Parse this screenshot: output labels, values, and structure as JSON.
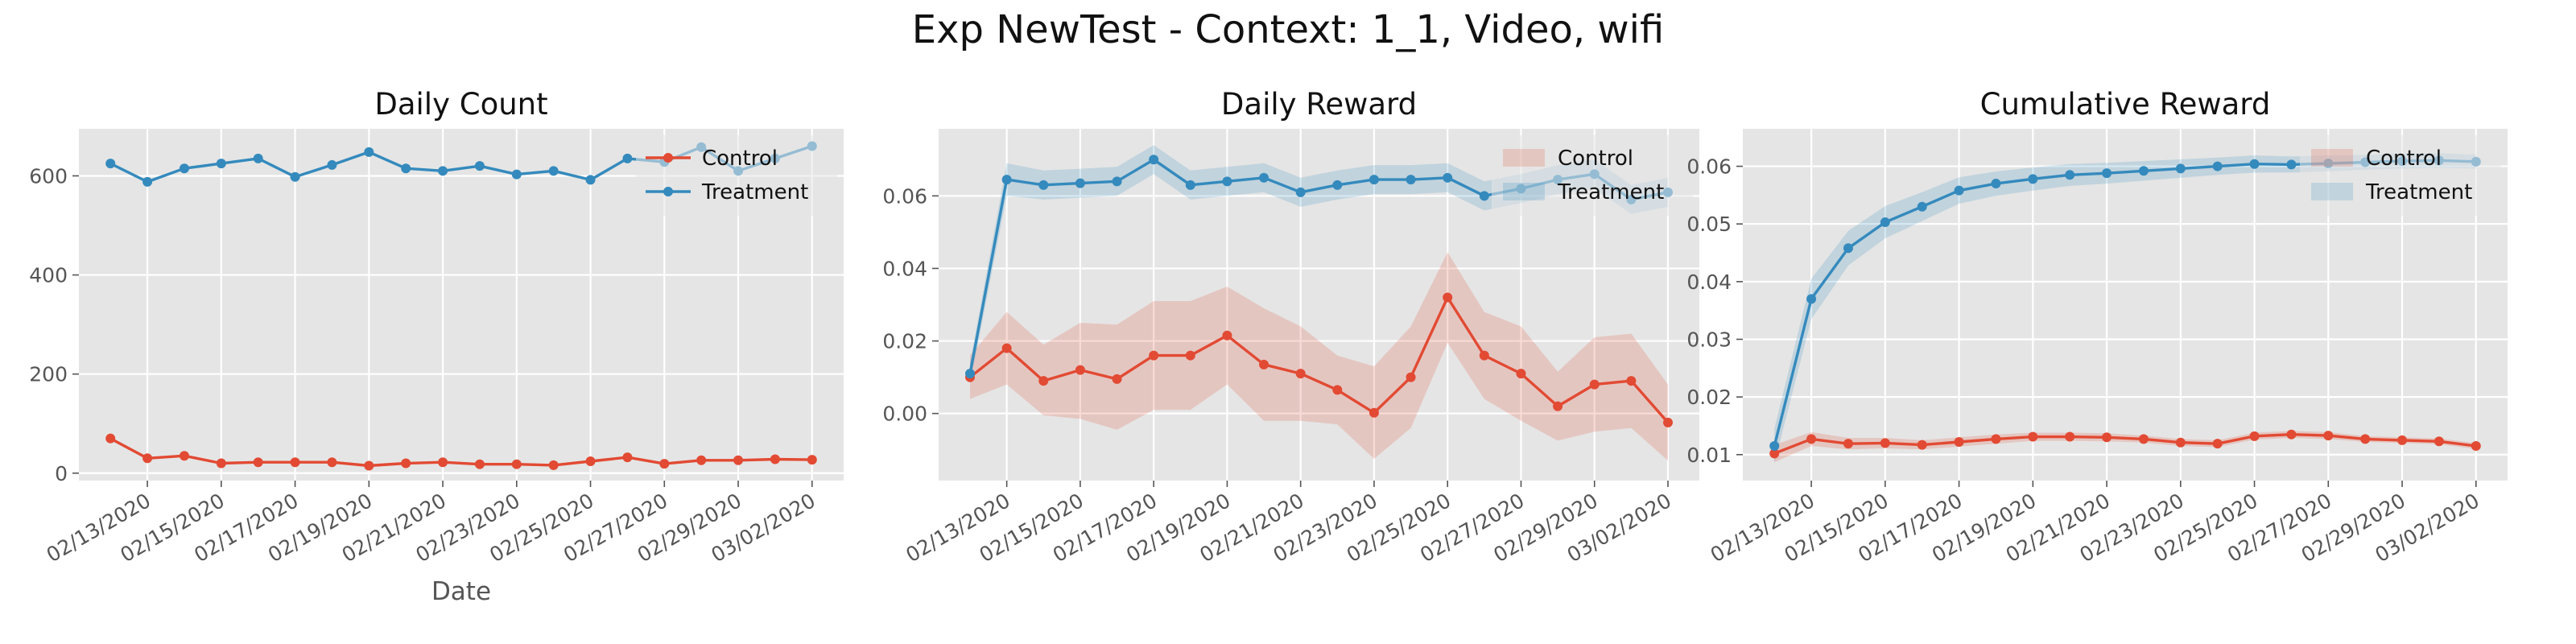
{
  "figure_title": "Exp NewTest - Context: 1_1, Video, wifi",
  "colors": {
    "control": "#e24a33",
    "treatment": "#348abd",
    "plot_background": "#e5e5e5",
    "grid": "#ffffff",
    "tick_text": "#555555"
  },
  "chart_data": [
    {
      "type": "line",
      "title": "Daily Count",
      "xlabel": "Date",
      "ylabel": "",
      "grid": true,
      "legend": {
        "placement": "top-right",
        "style": "line-marker",
        "entries": [
          "Control",
          "Treatment"
        ]
      },
      "x_range": [
        0,
        19
      ],
      "ylim": [
        -15,
        695
      ],
      "x_tick_labels": [
        {
          "x": 1,
          "label": "02/13/2020"
        },
        {
          "x": 3,
          "label": "02/15/2020"
        },
        {
          "x": 5,
          "label": "02/17/2020"
        },
        {
          "x": 7,
          "label": "02/19/2020"
        },
        {
          "x": 9,
          "label": "02/21/2020"
        },
        {
          "x": 11,
          "label": "02/23/2020"
        },
        {
          "x": 13,
          "label": "02/25/2020"
        },
        {
          "x": 15,
          "label": "02/27/2020"
        },
        {
          "x": 17,
          "label": "02/29/2020"
        },
        {
          "x": 19,
          "label": "03/02/2020"
        }
      ],
      "y_ticks": [
        0,
        200,
        400,
        600
      ],
      "y_tick_labels": [
        "0",
        "200",
        "400",
        "600"
      ],
      "series": [
        {
          "name": "Control",
          "x": [
            0,
            1,
            2,
            3,
            4,
            5,
            6,
            7,
            8,
            9,
            10,
            11,
            12,
            13,
            14,
            15,
            16,
            17,
            18,
            19
          ],
          "y": [
            70,
            30,
            35,
            20,
            22,
            22,
            22,
            15,
            20,
            22,
            18,
            18,
            16,
            24,
            32,
            19,
            26,
            26,
            28,
            27
          ]
        },
        {
          "name": "Treatment",
          "x": [
            0,
            1,
            2,
            3,
            4,
            5,
            6,
            7,
            8,
            9,
            10,
            11,
            12,
            13,
            14,
            15,
            16,
            17,
            18,
            19
          ],
          "y": [
            625,
            588,
            615,
            625,
            635,
            598,
            622,
            648,
            615,
            610,
            620,
            603,
            610,
            592,
            635,
            628,
            658,
            610,
            635,
            660
          ]
        }
      ]
    },
    {
      "type": "line",
      "title": "Daily Reward",
      "xlabel": "",
      "ylabel": "",
      "grid": true,
      "legend": {
        "placement": "top-right",
        "style": "patch",
        "entries": [
          "Control",
          "Treatment"
        ]
      },
      "x_range": [
        0,
        19
      ],
      "ylim": [
        -0.0185,
        0.0785
      ],
      "x_tick_labels": [
        {
          "x": 1,
          "label": "02/13/2020"
        },
        {
          "x": 3,
          "label": "02/15/2020"
        },
        {
          "x": 5,
          "label": "02/17/2020"
        },
        {
          "x": 7,
          "label": "02/19/2020"
        },
        {
          "x": 9,
          "label": "02/21/2020"
        },
        {
          "x": 11,
          "label": "02/23/2020"
        },
        {
          "x": 13,
          "label": "02/25/2020"
        },
        {
          "x": 15,
          "label": "02/27/2020"
        },
        {
          "x": 17,
          "label": "02/29/2020"
        },
        {
          "x": 19,
          "label": "03/02/2020"
        }
      ],
      "y_ticks": [
        0,
        0.02,
        0.04,
        0.06
      ],
      "y_tick_labels": [
        "0.00",
        "0.02",
        "0.04",
        "0.06"
      ],
      "series": [
        {
          "name": "Control",
          "x": [
            0,
            1,
            2,
            3,
            4,
            5,
            6,
            7,
            8,
            9,
            10,
            11,
            12,
            13,
            14,
            15,
            16,
            17,
            18,
            19
          ],
          "y": [
            0.01,
            0.018,
            0.009,
            0.012,
            0.0095,
            0.016,
            0.016,
            0.0215,
            0.0135,
            0.011,
            0.0065,
            0.0002,
            0.01,
            0.032,
            0.016,
            0.011,
            0.002,
            0.008,
            0.009,
            -0.0025
          ],
          "band_low": [
            0.004,
            0.008,
            -0.0005,
            -0.0015,
            -0.0045,
            0.001,
            0.001,
            0.008,
            -0.002,
            -0.002,
            -0.003,
            -0.0125,
            -0.004,
            0.0195,
            0.004,
            -0.002,
            -0.0075,
            -0.005,
            -0.004,
            -0.013
          ],
          "band_high": [
            0.016,
            0.028,
            0.019,
            0.025,
            0.0245,
            0.031,
            0.031,
            0.035,
            0.029,
            0.024,
            0.016,
            0.013,
            0.024,
            0.0445,
            0.028,
            0.024,
            0.0115,
            0.021,
            0.022,
            0.008
          ]
        },
        {
          "name": "Treatment",
          "x": [
            0,
            1,
            2,
            3,
            4,
            5,
            6,
            7,
            8,
            9,
            10,
            11,
            12,
            13,
            14,
            15,
            16,
            17,
            18,
            19
          ],
          "y": [
            0.011,
            0.0645,
            0.063,
            0.0635,
            0.064,
            0.07,
            0.063,
            0.064,
            0.065,
            0.061,
            0.063,
            0.0645,
            0.0645,
            0.065,
            0.06,
            0.062,
            0.0645,
            0.066,
            0.059,
            0.061
          ],
          "band_low": [
            0.008,
            0.06,
            0.059,
            0.0595,
            0.06,
            0.066,
            0.059,
            0.06,
            0.061,
            0.057,
            0.059,
            0.0605,
            0.0605,
            0.061,
            0.056,
            0.058,
            0.0605,
            0.062,
            0.055,
            0.057
          ],
          "band_high": [
            0.014,
            0.069,
            0.067,
            0.0675,
            0.068,
            0.074,
            0.067,
            0.068,
            0.069,
            0.065,
            0.067,
            0.0685,
            0.0685,
            0.069,
            0.064,
            0.066,
            0.0685,
            0.07,
            0.063,
            0.065
          ]
        }
      ]
    },
    {
      "type": "line",
      "title": "Cumulative Reward",
      "xlabel": "",
      "ylabel": "",
      "grid": true,
      "legend": {
        "placement": "top-right",
        "style": "patch",
        "entries": [
          "Control",
          "Treatment"
        ]
      },
      "x_range": [
        0,
        19
      ],
      "ylim": [
        0.0055,
        0.0665
      ],
      "x_tick_labels": [
        {
          "x": 1,
          "label": "02/13/2020"
        },
        {
          "x": 3,
          "label": "02/15/2020"
        },
        {
          "x": 5,
          "label": "02/17/2020"
        },
        {
          "x": 7,
          "label": "02/19/2020"
        },
        {
          "x": 9,
          "label": "02/21/2020"
        },
        {
          "x": 11,
          "label": "02/23/2020"
        },
        {
          "x": 13,
          "label": "02/25/2020"
        },
        {
          "x": 15,
          "label": "02/27/2020"
        },
        {
          "x": 17,
          "label": "02/29/2020"
        },
        {
          "x": 19,
          "label": "03/02/2020"
        }
      ],
      "y_ticks": [
        0.01,
        0.02,
        0.03,
        0.04,
        0.05,
        0.06
      ],
      "y_tick_labels": [
        "0.01",
        "0.02",
        "0.03",
        "0.04",
        "0.05",
        "0.06"
      ],
      "series": [
        {
          "name": "Control",
          "x": [
            0,
            1,
            2,
            3,
            4,
            5,
            6,
            7,
            8,
            9,
            10,
            11,
            12,
            13,
            14,
            15,
            16,
            17,
            18,
            19
          ],
          "y": [
            0.0102,
            0.0127,
            0.0119,
            0.012,
            0.0117,
            0.0122,
            0.0127,
            0.0131,
            0.0131,
            0.013,
            0.0127,
            0.0121,
            0.0119,
            0.0132,
            0.0135,
            0.0133,
            0.0127,
            0.0125,
            0.0123,
            0.0115
          ],
          "band_low": [
            0.0087,
            0.0115,
            0.0109,
            0.0111,
            0.0109,
            0.0114,
            0.0119,
            0.0124,
            0.0124,
            0.0123,
            0.0121,
            0.0115,
            0.0113,
            0.0126,
            0.0129,
            0.0127,
            0.0122,
            0.012,
            0.0118,
            0.011
          ],
          "band_high": [
            0.0117,
            0.0139,
            0.0129,
            0.0129,
            0.0125,
            0.013,
            0.0135,
            0.0138,
            0.0138,
            0.0137,
            0.0133,
            0.0127,
            0.0125,
            0.0138,
            0.0141,
            0.0139,
            0.0132,
            0.013,
            0.0128,
            0.012
          ]
        },
        {
          "name": "Treatment",
          "x": [
            0,
            1,
            2,
            3,
            4,
            5,
            6,
            7,
            8,
            9,
            10,
            11,
            12,
            13,
            14,
            15,
            16,
            17,
            18,
            19
          ],
          "y": [
            0.0115,
            0.037,
            0.0458,
            0.0503,
            0.053,
            0.0558,
            0.057,
            0.0578,
            0.0585,
            0.0588,
            0.0592,
            0.0596,
            0.06,
            0.0604,
            0.0603,
            0.0605,
            0.0607,
            0.0609,
            0.061,
            0.0608
          ],
          "band_low": [
            0.0085,
            0.0335,
            0.0428,
            0.0475,
            0.0505,
            0.0535,
            0.0549,
            0.0558,
            0.0566,
            0.057,
            0.0575,
            0.058,
            0.0585,
            0.0589,
            0.0589,
            0.0591,
            0.0594,
            0.0596,
            0.0597,
            0.0596
          ],
          "band_high": [
            0.0145,
            0.0405,
            0.0488,
            0.0531,
            0.0555,
            0.0581,
            0.0591,
            0.0598,
            0.0604,
            0.0606,
            0.0609,
            0.0612,
            0.0615,
            0.0619,
            0.0617,
            0.0619,
            0.062,
            0.0622,
            0.0623,
            0.062
          ]
        }
      ]
    }
  ]
}
